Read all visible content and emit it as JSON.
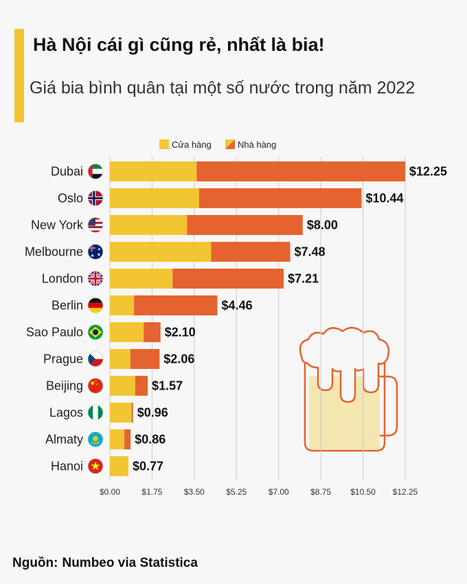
{
  "header": {
    "title": "Hà Nội cái gì cũng rẻ, nhất là bia!",
    "subtitle": "Giá bia bình quân tại một số nước trong năm 2022"
  },
  "source": {
    "prefix": "Nguồn:",
    "text": "Numbeo via Statistica"
  },
  "colors": {
    "store": "#f2c533",
    "restaurant": "#e5632f",
    "accent": "#f2c533",
    "mug_outline": "#e5632f",
    "mug_fill": "#f3e6b0"
  },
  "decoration": {
    "icon": "beer-mug-icon"
  },
  "chart_data": {
    "type": "bar",
    "orientation": "horizontal",
    "stacked": true,
    "title": "",
    "xlabel": "",
    "ylabel": "",
    "xlim": [
      0,
      12.25
    ],
    "grid": true,
    "legend_position": "top",
    "x_ticks": [
      "$0.00",
      "$1.75",
      "$3.50",
      "$5.25",
      "$7.00",
      "$8.75",
      "$10.50",
      "$12.25"
    ],
    "x_tick_values": [
      0,
      1.75,
      3.5,
      5.25,
      7.0,
      8.75,
      10.5,
      12.25
    ],
    "categories": [
      "Dubai",
      "Oslo",
      "New York",
      "Melbourne",
      "London",
      "Berlin",
      "Sao Paulo",
      "Prague",
      "Beijing",
      "Lagos",
      "Almaty",
      "Hanoi"
    ],
    "flags": [
      "flag-uae-icon",
      "flag-norway-icon",
      "flag-usa-icon",
      "flag-australia-icon",
      "flag-uk-icon",
      "flag-germany-icon",
      "flag-brazil-icon",
      "flag-czech-icon",
      "flag-china-icon",
      "flag-nigeria-icon",
      "flag-kazakhstan-icon",
      "flag-vietnam-icon"
    ],
    "series": [
      {
        "name": "Cửa hàng",
        "color": "#f2c533",
        "values": [
          3.6,
          3.7,
          3.2,
          4.2,
          2.6,
          1.0,
          1.4,
          0.85,
          1.05,
          0.9,
          0.6,
          0.77
        ]
      },
      {
        "name": "Nhà hàng",
        "color": "#e5632f",
        "values": [
          8.65,
          6.74,
          4.8,
          3.28,
          4.61,
          3.46,
          0.7,
          1.21,
          0.52,
          0.06,
          0.26,
          0.0
        ]
      }
    ],
    "totals": [
      12.25,
      10.44,
      8.0,
      7.48,
      7.21,
      4.46,
      2.1,
      2.06,
      1.57,
      0.96,
      0.86,
      0.77
    ],
    "value_labels": [
      "$12.25",
      "$10.44",
      "$8.00",
      "$7.48",
      "$7.21",
      "$4.46",
      "$2.10",
      "$2.06",
      "$1.57",
      "$0.96",
      "$0.86",
      "$0.77"
    ]
  }
}
